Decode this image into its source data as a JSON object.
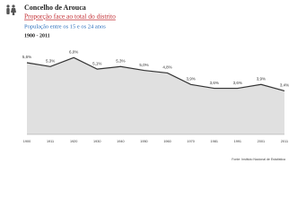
{
  "chart_data": {
    "type": "area",
    "title": "Concelho de Arouca",
    "subtitle": "Proporção face ao total do distrito",
    "description": "População entre os 15 e os 24 anos",
    "period": "1900 - 2011",
    "source": "Fonte: Instituto Nacional de Estatística",
    "categories": [
      "1900",
      "1911",
      "1920",
      "1930",
      "1940",
      "1950",
      "1960",
      "1970",
      "1981",
      "1991",
      "2001",
      "2011"
    ],
    "values": [
      5.6,
      5.3,
      6.0,
      5.1,
      5.3,
      5.0,
      4.8,
      3.9,
      3.6,
      3.6,
      3.9,
      3.4
    ],
    "value_labels": [
      "5,6%",
      "5,3%",
      "6,0%",
      "5,1%",
      "5,3%",
      "5,0%",
      "4,8%",
      "3,9%",
      "3,6%",
      "3,6%",
      "3,9%",
      "3,4%"
    ],
    "ylim": [
      0,
      7
    ],
    "color": "#e0e0e0",
    "line_color": "#333333"
  }
}
